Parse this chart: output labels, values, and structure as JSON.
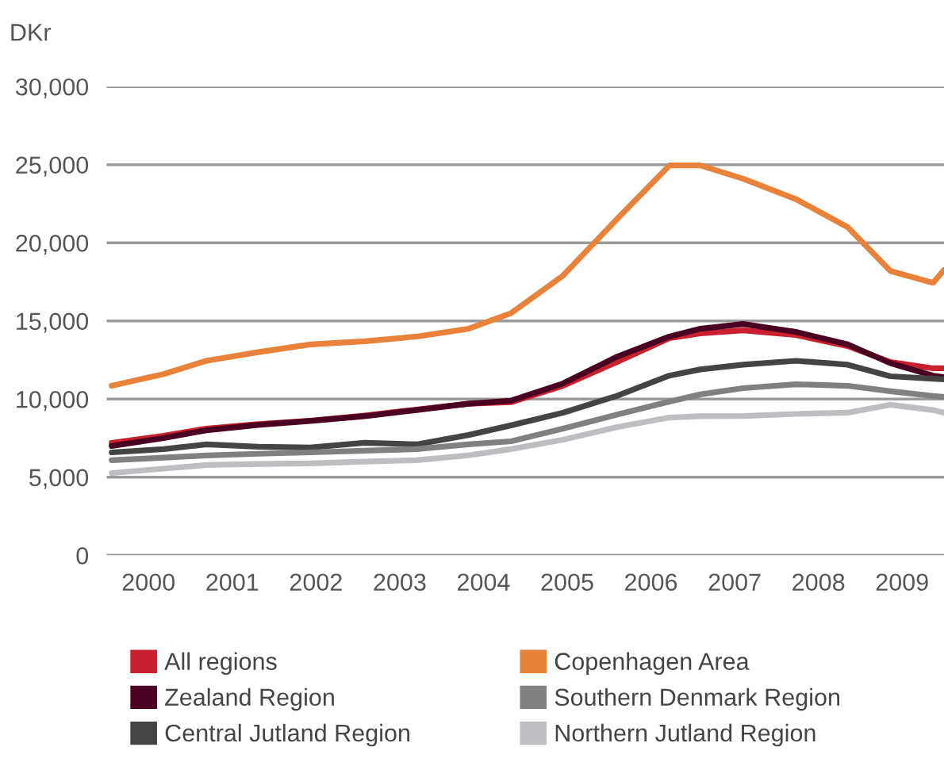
{
  "chart_data": {
    "type": "line",
    "ylabel": "DKr",
    "x": [
      2000.06,
      2000.68,
      2001.19,
      2001.81,
      2002.43,
      2003.08,
      2003.7,
      2004.32,
      2004.83,
      2005.45,
      2006.09,
      2006.72,
      2007.09,
      2007.6,
      2008.23,
      2008.85,
      2009.36,
      2009.87,
      2010.0
    ],
    "series": [
      {
        "name": "All regions",
        "color": "#c8202f",
        "values": [
          7200,
          7650,
          8110,
          8400,
          8620,
          8950,
          9330,
          9700,
          9800,
          10850,
          12370,
          13900,
          14200,
          14400,
          14100,
          13390,
          12370,
          11970,
          11970
        ]
      },
      {
        "name": "Zealand Region",
        "color": "#4a0020",
        "values": [
          7000,
          7500,
          8000,
          8350,
          8600,
          8900,
          9300,
          9700,
          9900,
          11000,
          12700,
          14000,
          14500,
          14800,
          14300,
          13500,
          12300,
          11500,
          11400
        ]
      },
      {
        "name": "Central Jutland Region",
        "color": "#444444",
        "values": [
          6590,
          6800,
          7100,
          6950,
          6900,
          7200,
          7100,
          7700,
          8320,
          9130,
          10200,
          11500,
          11900,
          12200,
          12450,
          12200,
          11460,
          11300,
          11260
        ]
      },
      {
        "name": "Copenhagen Area",
        "color": "#e8823a",
        "values": [
          10850,
          11600,
          12450,
          13000,
          13500,
          13700,
          14000,
          14500,
          15500,
          17900,
          21500,
          24950,
          24950,
          24100,
          22800,
          21000,
          18200,
          17440,
          18260
        ]
      },
      {
        "name": "Southern Denmark Region",
        "color": "#808080",
        "values": [
          6090,
          6250,
          6390,
          6500,
          6590,
          6700,
          6800,
          7100,
          7300,
          8110,
          9000,
          9840,
          10300,
          10700,
          10950,
          10850,
          10500,
          10200,
          10140
        ]
      },
      {
        "name": "Northern Jutland Region",
        "color": "#bdbdc2",
        "values": [
          5270,
          5550,
          5780,
          5850,
          5880,
          6000,
          6090,
          6400,
          6800,
          7400,
          8200,
          8820,
          8900,
          8920,
          9050,
          9130,
          9640,
          9300,
          9130
        ]
      }
    ],
    "xlim": [
      2000,
      2010
    ],
    "xticks": [
      {
        "value": 2000.5,
        "label": "2000"
      },
      {
        "value": 2001.5,
        "label": "2001"
      },
      {
        "value": 2002.5,
        "label": "2002"
      },
      {
        "value": 2003.5,
        "label": "2003"
      },
      {
        "value": 2004.5,
        "label": "2004"
      },
      {
        "value": 2005.5,
        "label": "2005"
      },
      {
        "value": 2006.5,
        "label": "2006"
      },
      {
        "value": 2007.5,
        "label": "2007"
      },
      {
        "value": 2008.5,
        "label": "2008"
      },
      {
        "value": 2009.5,
        "label": "2009"
      }
    ],
    "ylim": [
      0,
      30000
    ],
    "yticks": [
      0,
      {
        "value": 5000,
        "label": "5,000"
      },
      {
        "value": 10000,
        "label": "10,000"
      },
      {
        "value": 15000,
        "label": "15,000"
      },
      {
        "value": 20000,
        "label": "20,000"
      },
      {
        "value": 25000,
        "label": "25,000"
      },
      {
        "value": 30000,
        "label": "30,000"
      }
    ],
    "grid": "y",
    "legend": "bottom",
    "marker": "none",
    "line_style": "solid"
  }
}
